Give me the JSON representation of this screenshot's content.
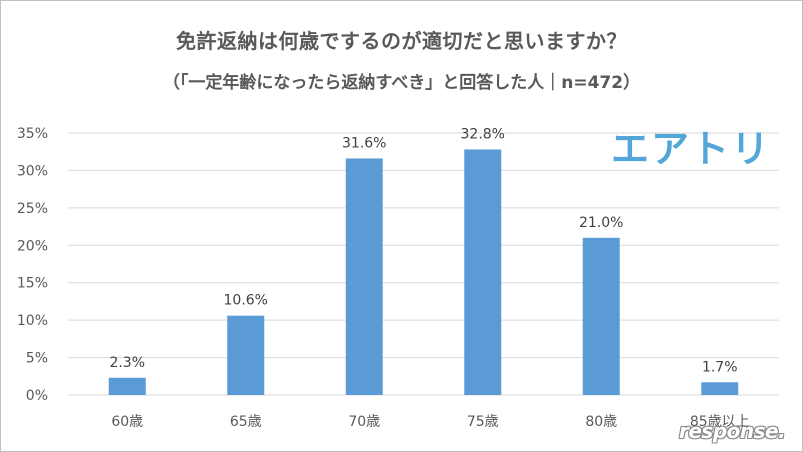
{
  "header": {
    "title": "免許返納は何歳でするのが適切だと思いますか？",
    "subtitle": "（「一定年齢になったら返納すべき」と回答した人｜n=472）"
  },
  "branding": {
    "logo_text": "エアトリ",
    "logo_color": "#52a7d8",
    "watermark_text": "response."
  },
  "chart_data": {
    "type": "bar",
    "categories": [
      "60歳",
      "65歳",
      "70歳",
      "75歳",
      "80歳",
      "85歳以上"
    ],
    "series": [
      {
        "values": [
          2.3,
          10.6,
          31.6,
          32.8,
          21.0,
          1.7
        ],
        "data_labels": [
          "2.3%",
          "10.6%",
          "31.6%",
          "32.8%",
          "21.0%",
          "1.7%"
        ],
        "color": "#5b9bd5"
      }
    ],
    "y_ticks": [
      "0%",
      "5%",
      "10%",
      "15%",
      "20%",
      "25%",
      "30%",
      "35%"
    ],
    "ylim": [
      0,
      35
    ],
    "y_tick_step": 5,
    "grid": true,
    "grid_color": "#d9d9d9",
    "legend": "none",
    "xlabel": "",
    "ylabel": ""
  }
}
